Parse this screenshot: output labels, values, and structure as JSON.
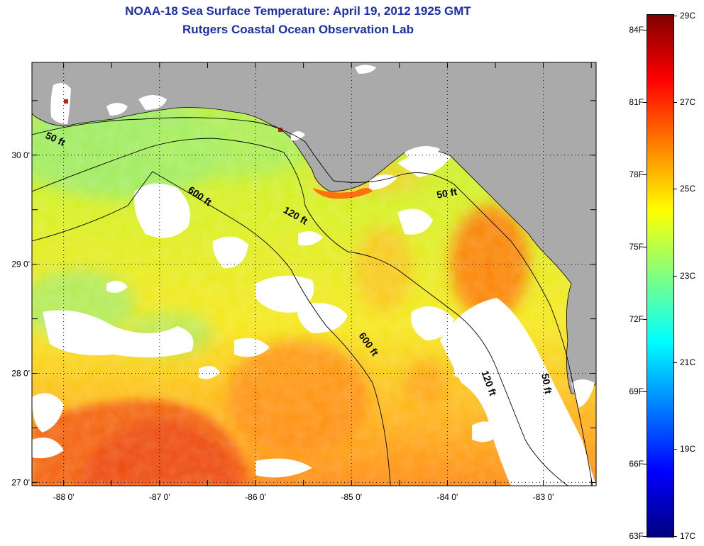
{
  "title": {
    "line1": "NOAA-18 Sea Surface Temperature:  April 19, 2012 1925 GMT",
    "line2": "Rutgers Coastal Ocean Observation Lab"
  },
  "colors": {
    "land": "#aaaaaa",
    "cloud": "#ffffff",
    "title": "#1a2fa8"
  },
  "map": {
    "lon_range": [
      -88.33,
      -82.45
    ],
    "lat_range": [
      26.97,
      30.85
    ],
    "x_ticks": [
      {
        "lon": -88,
        "label": "-88 0'"
      },
      {
        "lon": -87,
        "label": "-87 0'"
      },
      {
        "lon": -86,
        "label": "-86 0'"
      },
      {
        "lon": -85,
        "label": "-85 0'"
      },
      {
        "lon": -84,
        "label": "-84 0'"
      },
      {
        "lon": -83,
        "label": "-83 0'"
      }
    ],
    "y_ticks": [
      {
        "lat": 30,
        "label": "30 0'"
      },
      {
        "lat": 29,
        "label": "29 0'"
      },
      {
        "lat": 28,
        "label": "28 0'"
      },
      {
        "lat": 27,
        "label": "27 0'"
      }
    ],
    "contour_labels": [
      {
        "text": "50 ft",
        "lon": -88.1,
        "lat": 30.12,
        "rot": 25
      },
      {
        "text": "600 ft",
        "lon": -86.6,
        "lat": 29.6,
        "rot": 35
      },
      {
        "text": "120 ft",
        "lon": -85.6,
        "lat": 29.42,
        "rot": 30
      },
      {
        "text": "50 ft",
        "lon": -84.0,
        "lat": 29.62,
        "rot": -10
      },
      {
        "text": "600 ft",
        "lon": -84.85,
        "lat": 28.25,
        "rot": 55
      },
      {
        "text": "120 ft",
        "lon": -83.6,
        "lat": 27.9,
        "rot": 70
      },
      {
        "text": "50 ft",
        "lon": -83.0,
        "lat": 27.9,
        "rot": 80
      }
    ]
  },
  "colorbar": {
    "f_labels": [
      "84F",
      "81F",
      "78F",
      "75F",
      "72F",
      "69F",
      "66F",
      "63F"
    ],
    "c_labels": [
      "29C",
      "27C",
      "25C",
      "23C",
      "21C",
      "19C",
      "17C"
    ],
    "stops": [
      "#800000",
      "#ff0000",
      "#ff8000",
      "#ffff00",
      "#80ff80",
      "#00ffff",
      "#0080ff",
      "#0000ff",
      "#000080"
    ]
  }
}
